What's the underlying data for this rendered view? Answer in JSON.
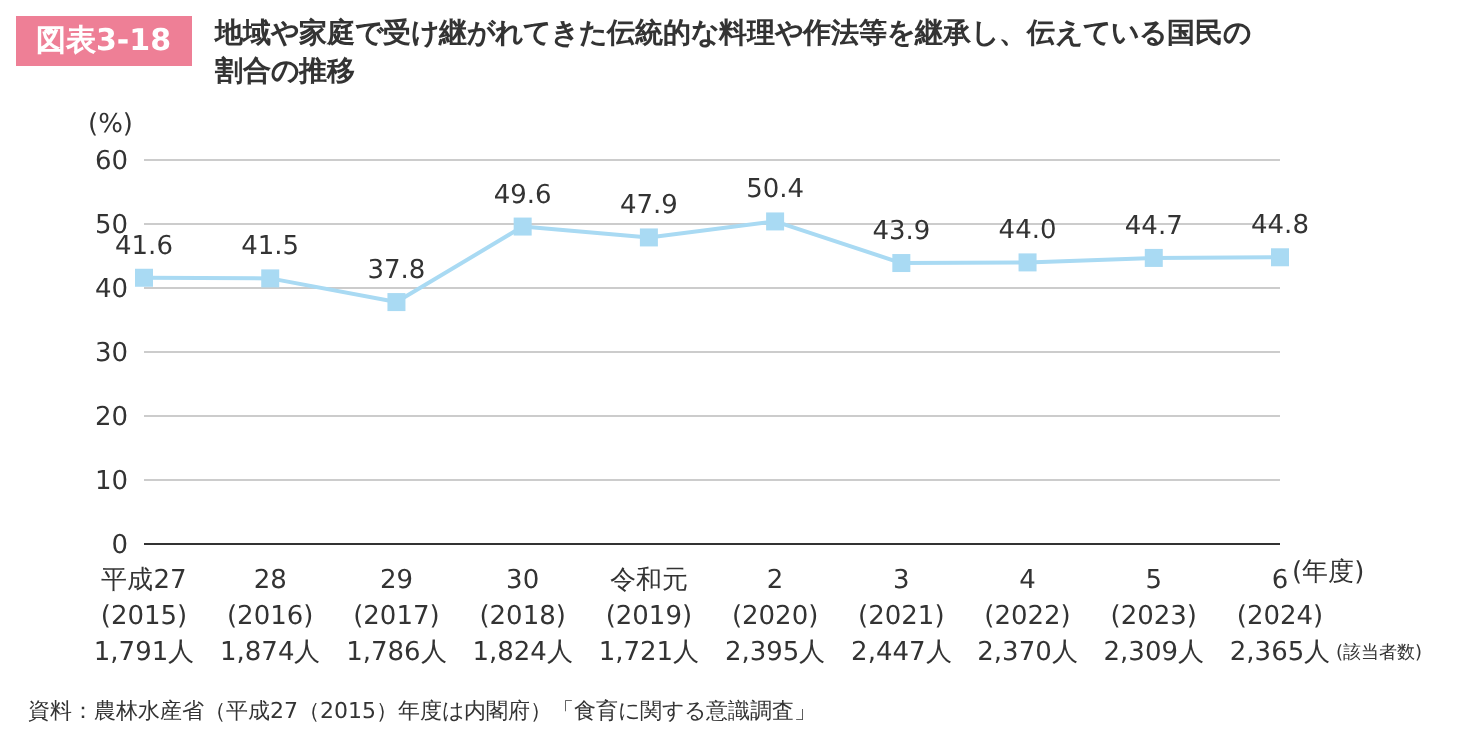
{
  "chart_data": {
    "type": "line",
    "title": "地域や家庭で受け継がれてきた伝統的な料理や作法等を継承し、伝えている国民の割合の推移",
    "categories": [
      "平成27\n(2015)\n1,791人",
      "28\n(2016)\n1,874人",
      "29\n(2017)\n1,786人",
      "30\n(2018)\n1,824人",
      "令和元\n(2019)\n1,721人",
      "2\n(2020)\n2,395人",
      "3\n(2021)\n2,447人",
      "4\n(2022)\n2,370人",
      "5\n(2023)\n2,309人",
      "6\n(2024)\n2,365人"
    ],
    "series": [
      {
        "color": "#a9daf3",
        "values": [
          41.6,
          41.5,
          37.8,
          49.6,
          47.9,
          50.4,
          43.9,
          44.0,
          44.7,
          44.8
        ],
        "value_labels": [
          "41.6",
          "41.5",
          "37.8",
          "49.6",
          "47.9",
          "50.4",
          "43.9",
          "44.0",
          "44.7",
          "44.8"
        ]
      }
    ],
    "ylabel": "(%)",
    "xlabel": "(年度)",
    "ylim": [
      0,
      60
    ],
    "yticks": [
      0,
      10,
      20,
      30,
      40,
      50,
      60
    ],
    "grid": "y",
    "marker": "square",
    "annotations": [
      "図表3-18",
      "(該当者数)",
      "資料：農林水産省（平成27（2015）年度は内閣府）「食育に関する意識調査」"
    ]
  }
}
